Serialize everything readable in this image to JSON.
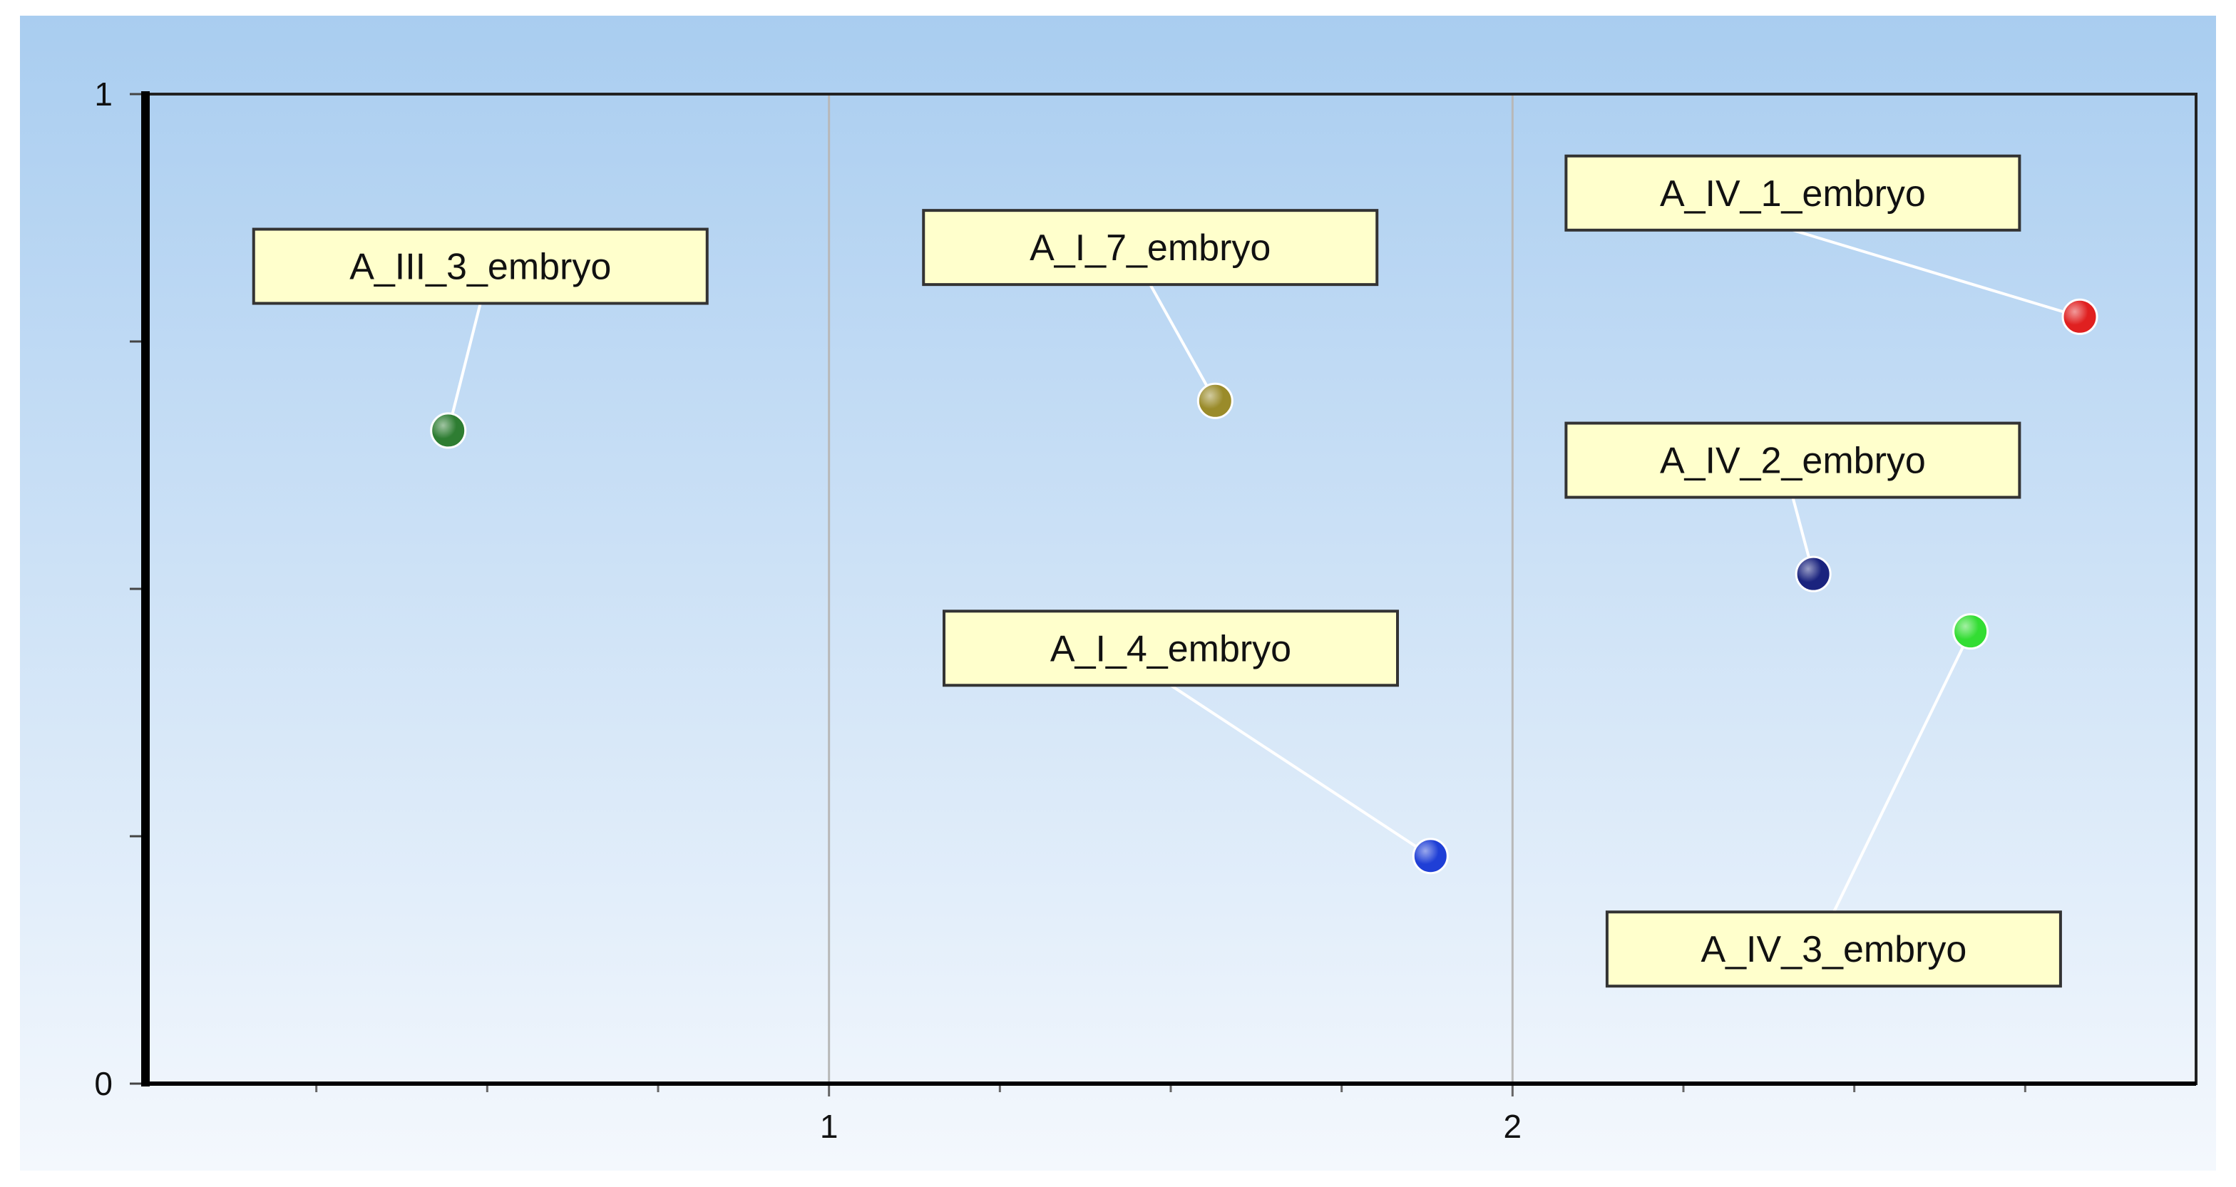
{
  "chart_data": {
    "type": "scatter",
    "xlim": [
      0,
      3
    ],
    "ylim": [
      0,
      1
    ],
    "x_ticks": [
      {
        "value": 1,
        "label": "1"
      },
      {
        "value": 2,
        "label": "2"
      }
    ],
    "y_ticks": [
      {
        "value": 0,
        "label": "0"
      },
      {
        "value": 1,
        "label": "1"
      }
    ],
    "grid": {
      "vertical": true,
      "horizontal": false
    },
    "background": {
      "top": "#a9cdf0",
      "bottom": "#f4f8fd"
    },
    "label_box": {
      "fill": "#ffffcc",
      "border": "#333333"
    },
    "connector_color": "#ffffff",
    "points": [
      {
        "label": "A_III_3_embryo",
        "x": 0.443,
        "y": 0.66,
        "color": "#2e7d32",
        "label_x": 0.49,
        "label_y": 0.826
      },
      {
        "label": "A_I_7_embryo",
        "x": 1.565,
        "y": 0.69,
        "color": "#9a8b2a",
        "label_x": 1.47,
        "label_y": 0.845
      },
      {
        "label": "A_I_4_embryo",
        "x": 1.88,
        "y": 0.23,
        "color": "#1f3fd6",
        "label_x": 1.5,
        "label_y": 0.44
      },
      {
        "label": "A_IV_1_embryo",
        "x": 2.83,
        "y": 0.775,
        "color": "#e02020",
        "label_x": 2.41,
        "label_y": 0.9
      },
      {
        "label": "A_IV_2_embryo",
        "x": 2.44,
        "y": 0.515,
        "color": "#1a237e",
        "label_x": 2.41,
        "label_y": 0.63
      },
      {
        "label": "A_IV_3_embryo",
        "x": 2.67,
        "y": 0.457,
        "color": "#33dd33",
        "label_x": 2.47,
        "label_y": 0.136
      }
    ]
  }
}
